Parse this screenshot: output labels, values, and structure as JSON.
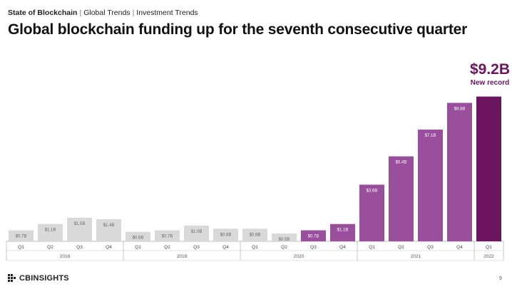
{
  "header": {
    "breadcrumb_main": "State of Blockchain",
    "breadcrumb_2": "Global Trends",
    "breadcrumb_3": "Investment Trends",
    "separator": "|",
    "title": "Global blockchain funding up for the seventh consecutive quarter"
  },
  "callout": {
    "value": "$9.2B",
    "label": "New record"
  },
  "footer": {
    "logo_text": "CBINSIGHTS",
    "page_number": "9"
  },
  "colors": {
    "gray_bar": "#d9d9d9",
    "purple_light": "#9a4f9c",
    "purple_dark": "#6b1460",
    "label_gray": "#666666",
    "label_white": "#ffffff"
  },
  "chart_data": {
    "type": "bar",
    "title": "",
    "xlabel": "",
    "ylabel": "",
    "ylim": [
      0,
      9.5
    ],
    "grid": false,
    "categories": [
      "Q1",
      "Q2",
      "Q3",
      "Q4",
      "Q1",
      "Q2",
      "Q3",
      "Q4",
      "Q1",
      "Q2",
      "Q3",
      "Q4",
      "Q1",
      "Q2",
      "Q3",
      "Q4",
      "Q1"
    ],
    "years": [
      {
        "label": "2018",
        "span": 4
      },
      {
        "label": "2019",
        "span": 4
      },
      {
        "label": "2020",
        "span": 4
      },
      {
        "label": "2021",
        "span": 4
      },
      {
        "label": "2022",
        "span": 1
      }
    ],
    "values": [
      0.7,
      1.1,
      1.5,
      1.4,
      0.6,
      0.7,
      1.0,
      0.8,
      0.8,
      0.5,
      0.7,
      1.1,
      3.6,
      5.4,
      7.1,
      8.8,
      9.2
    ],
    "labels": [
      "$0.7B",
      "$1.1B",
      "$1.5B",
      "$1.4B",
      "$0.6B",
      "$0.7B",
      "$1.0B",
      "$0.8B",
      "$0.8B",
      "$0.5B",
      "$0.7B",
      "$1.1B",
      "$3.6B",
      "$5.4B",
      "$7.1B",
      "$8.8B",
      ""
    ],
    "styles": [
      "gray",
      "gray",
      "gray",
      "gray",
      "gray",
      "gray",
      "gray",
      "gray",
      "gray",
      "gray",
      "light",
      "light",
      "light",
      "light",
      "light",
      "light",
      "dark"
    ]
  }
}
